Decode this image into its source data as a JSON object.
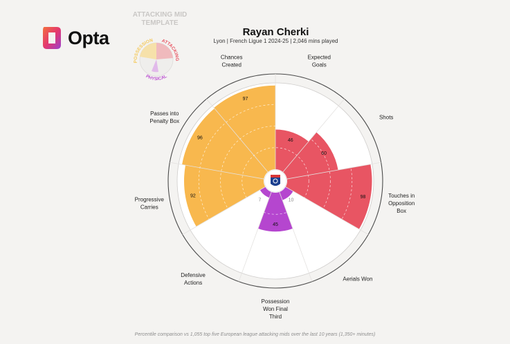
{
  "brand": {
    "name": "Opta"
  },
  "template": {
    "title_line1": "ATTACKING MID",
    "title_line2": "TEMPLATE",
    "groups": [
      {
        "name": "POSSESSION",
        "color": "#f4c95c"
      },
      {
        "name": "ATTACKING",
        "color": "#e85563"
      },
      {
        "name": "PHYSICAL",
        "color": "#bd57d2"
      }
    ]
  },
  "player": {
    "name": "Rayan Cherki",
    "subtitle": "Lyon | French Ligue 1 2024-25 | 2,046 mins played"
  },
  "footer": "Percentile comparison vs 1,055 top five European league attacking mids over the last 10 years (1,350+ minutes)",
  "colors": {
    "possession": "#f8b84e",
    "attacking": "#e85563",
    "physical": "#b546cf",
    "background": "#f4f3f1"
  },
  "chart_data": {
    "type": "radar",
    "scale": [
      0,
      100
    ],
    "categories": [
      {
        "label": [
          "Expected",
          "Goals"
        ],
        "value": 46,
        "group": "attacking"
      },
      {
        "label": [
          "Shots"
        ],
        "value": 60,
        "group": "attacking"
      },
      {
        "label": [
          "Touches in",
          "Opposition",
          "Box"
        ],
        "value": 98,
        "group": "attacking"
      },
      {
        "label": [
          "Aerials Won"
        ],
        "value": 10,
        "group": "physical"
      },
      {
        "label": [
          "Possession",
          "Won Final",
          "Third"
        ],
        "value": 45,
        "group": "physical"
      },
      {
        "label": [
          "Defensive",
          "Actions"
        ],
        "value": 7,
        "group": "physical"
      },
      {
        "label": [
          "Progressive",
          "Carries"
        ],
        "value": 92,
        "group": "possession"
      },
      {
        "label": [
          "Passes into",
          "Penalty Box"
        ],
        "value": 96,
        "group": "possession"
      },
      {
        "label": [
          "Chances",
          "Created"
        ],
        "value": 97,
        "group": "possession"
      }
    ]
  }
}
